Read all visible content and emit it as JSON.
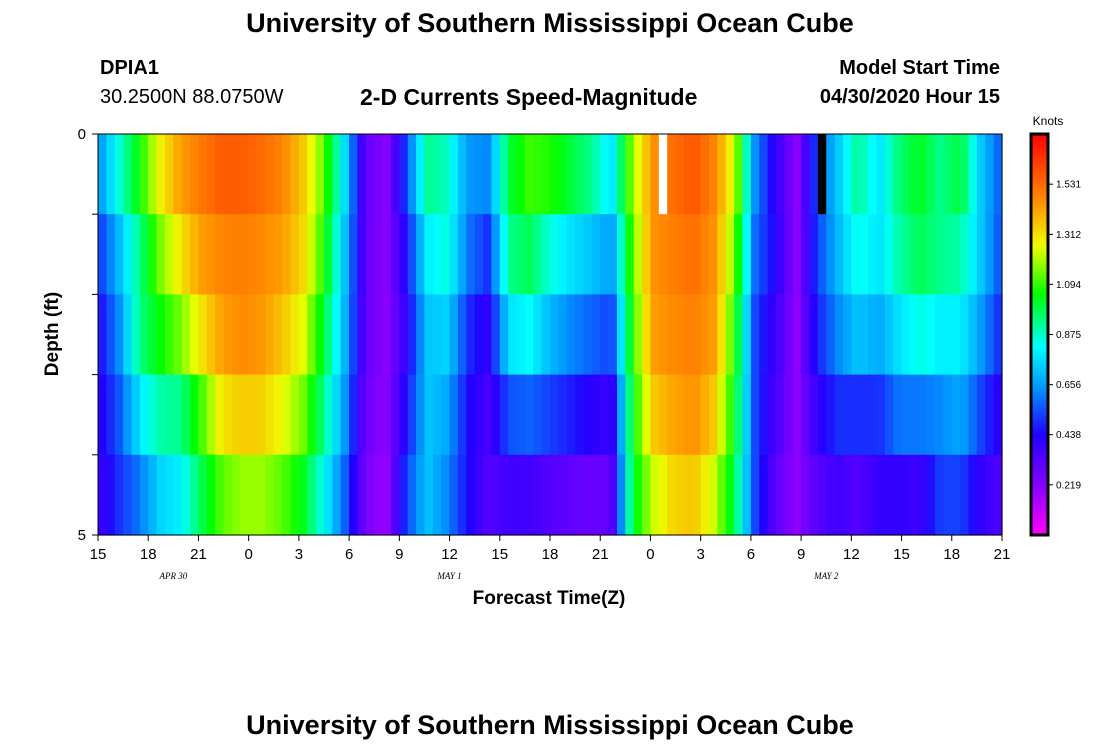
{
  "page": {
    "title_top": "University of Southern Mississippi Ocean Cube",
    "title_bottom": "University of Southern Mississippi Ocean Cube",
    "station_id": "DPIA1",
    "station_coords": "30.2500N 88.0750W",
    "subtitle": "2-D Currents Speed-Magnitude",
    "model_start_label": "Model Start Time",
    "model_start_value": "04/30/2020 Hour 15"
  },
  "chart_data": {
    "type": "heatmap",
    "title": "2-D Currents Speed-Magnitude",
    "xlabel": "Forecast Time(Z)",
    "ylabel": "Depth (ft)",
    "x_unit": "hours since model start",
    "x_range": [
      0,
      54
    ],
    "x_tick_labels": [
      "15",
      "18",
      "21",
      "0",
      "3",
      "6",
      "9",
      "12",
      "15",
      "18",
      "21",
      "0",
      "3",
      "6",
      "9",
      "12",
      "15",
      "18",
      "21"
    ],
    "date_labels": [
      {
        "text": "APR  30",
        "at_tick": 1.5
      },
      {
        "text": "MAY  1",
        "at_tick": 7
      },
      {
        "text": "MAY  2",
        "at_tick": 14.5
      }
    ],
    "y_range": [
      0,
      5
    ],
    "y_tick_labels": [
      "0",
      "5"
    ],
    "y_ticks": [
      0,
      1,
      2,
      3,
      4,
      5
    ],
    "colorbar": {
      "title": "Knots",
      "min": 0.0,
      "max": 1.75,
      "tick_values": [
        1.531,
        1.312,
        1.094,
        0.875,
        0.656,
        0.438,
        0.219
      ]
    },
    "depth_bands": [
      0,
      1,
      2,
      3,
      4
    ],
    "columns_per_hour": 2,
    "speed_profiles_knots": [
      [
        0.7,
        0.55,
        0.45,
        0.42,
        0.4,
        0.35
      ],
      [
        0.95,
        0.75,
        0.65,
        0.6,
        0.5,
        0.5
      ],
      [
        1.15,
        0.95,
        0.9,
        0.95,
        0.6,
        0.6
      ],
      [
        1.35,
        1.2,
        1.1,
        1.0,
        0.8,
        0.7
      ],
      [
        1.5,
        1.35,
        1.25,
        1.05,
        0.8,
        0.8
      ],
      [
        1.55,
        1.45,
        1.4,
        1.2,
        1.0,
        0.95
      ],
      [
        1.62,
        1.5,
        1.45,
        1.4,
        1.2,
        1.05
      ],
      [
        1.62,
        1.5,
        1.48,
        1.45,
        1.25,
        1.12
      ],
      [
        1.58,
        1.48,
        1.45,
        1.42,
        1.25,
        1.12
      ],
      [
        1.5,
        1.45,
        1.4,
        1.32,
        1.2,
        1.05
      ],
      [
        1.35,
        1.35,
        1.3,
        1.2,
        1.1,
        0.95
      ],
      [
        1.15,
        1.1,
        1.05,
        0.95,
        0.9,
        0.75
      ],
      [
        0.8,
        0.75,
        0.7,
        0.7,
        0.6,
        0.55
      ],
      [
        0.3,
        0.3,
        0.3,
        0.3,
        0.25,
        0.25
      ],
      [
        0.2,
        0.2,
        0.2,
        0.2,
        0.2,
        0.15
      ],
      [
        0.55,
        0.5,
        0.4,
        0.4,
        0.5,
        0.55
      ],
      [
        1.0,
        0.85,
        0.75,
        0.7,
        0.75,
        0.7
      ],
      [
        0.85,
        0.9,
        0.8,
        0.7,
        0.65,
        0.6
      ],
      [
        0.65,
        0.65,
        0.55,
        0.45,
        0.45,
        0.45
      ],
      [
        0.7,
        0.55,
        0.45,
        0.35,
        0.35,
        0.3
      ],
      [
        1.05,
        0.95,
        0.9,
        0.65,
        0.45,
        0.3
      ],
      [
        1.2,
        1.0,
        0.95,
        0.7,
        0.45,
        0.28
      ],
      [
        1.25,
        0.9,
        0.8,
        0.6,
        0.45,
        0.2
      ],
      [
        1.15,
        0.85,
        0.7,
        0.55,
        0.4,
        0.2
      ],
      [
        1.05,
        0.8,
        0.65,
        0.5,
        0.35,
        0.2
      ],
      [
        0.85,
        0.7,
        0.6,
        0.45,
        0.3,
        0.3
      ],
      [
        1.2,
        1.15,
        1.1,
        1.05,
        1.0,
        1.0
      ],
      [
        1.45,
        1.45,
        1.45,
        1.4,
        1.3,
        1.15
      ],
      [
        1.55,
        1.5,
        1.48,
        1.45,
        1.38,
        1.28
      ],
      [
        1.6,
        1.55,
        1.5,
        1.48,
        1.42,
        1.3
      ],
      [
        1.5,
        1.45,
        1.45,
        1.4,
        1.3,
        1.15
      ],
      [
        1.25,
        1.2,
        1.1,
        1.05,
        1.0,
        0.95
      ],
      [
        0.65,
        0.6,
        0.55,
        0.5,
        0.55,
        0.5
      ],
      [
        0.35,
        0.45,
        0.4,
        0.35,
        0.35,
        0.25
      ],
      [
        0.2,
        0.2,
        0.2,
        0.2,
        0.2,
        0.2
      ],
      [
        0.55,
        0.55,
        0.5,
        0.45,
        0.35,
        0.3
      ],
      [
        0.7,
        0.75,
        0.65,
        0.6,
        0.4,
        0.35
      ],
      [
        0.95,
        0.9,
        0.8,
        0.65,
        0.35,
        0.3
      ],
      [
        0.75,
        0.8,
        0.75,
        0.6,
        0.4,
        0.4
      ],
      [
        0.95,
        0.95,
        0.85,
        0.7,
        0.5,
        0.3
      ],
      [
        1.05,
        1.0,
        0.95,
        0.75,
        0.45,
        0.3
      ],
      [
        0.9,
        0.95,
        0.9,
        0.7,
        0.55,
        0.5
      ],
      [
        1.05,
        0.95,
        0.85,
        0.75,
        0.6,
        0.45
      ],
      [
        0.7,
        0.75,
        0.7,
        0.6,
        0.45,
        0.35
      ],
      [
        0.55,
        0.55,
        0.5,
        0.45,
        0.35,
        0.3
      ]
    ],
    "missing_cells": [
      {
        "hour": 33.5,
        "width_hours": 0.5,
        "depth_band": 0,
        "color": "#ffffff"
      },
      {
        "hour": 43.0,
        "width_hours": 0.5,
        "depth_band": 0,
        "color": "#000000"
      }
    ]
  }
}
